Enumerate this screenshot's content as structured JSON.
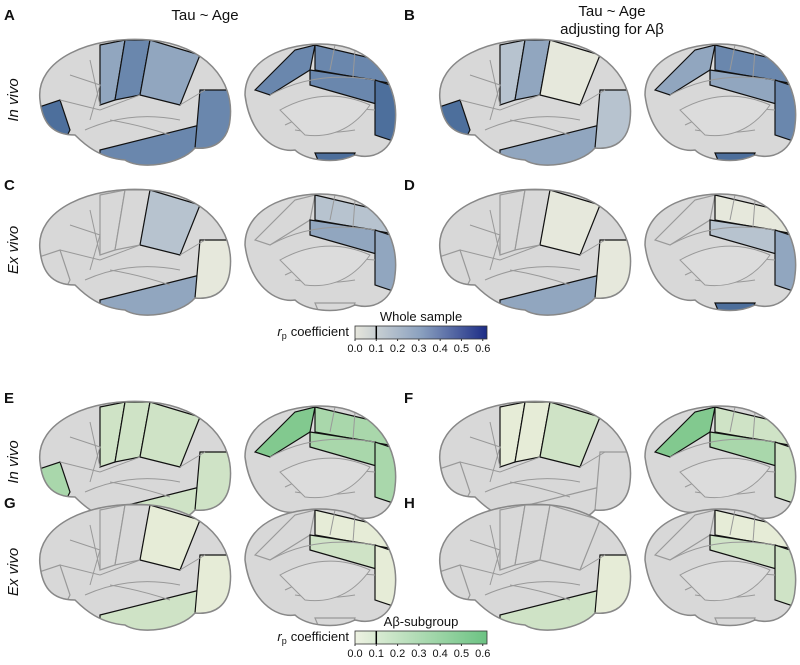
{
  "panels": [
    "A",
    "B",
    "C",
    "D",
    "E",
    "F",
    "G",
    "H"
  ],
  "column_titles": {
    "left": "Tau ~ Age",
    "right": [
      "Tau ~ Age",
      "adjusting for Aβ"
    ]
  },
  "row_labels": [
    "In vivo",
    "Ex vivo",
    "In vivo",
    "Ex vivo"
  ],
  "colorbars": [
    {
      "title": "Whole sample",
      "symbol": "r",
      "subscript": "p",
      "label": "coefficient",
      "lim": [
        0,
        0.62
      ],
      "threshold": 0.1,
      "ticks": [
        {
          "value": 0,
          "label": "0.0"
        },
        {
          "value": 0.1,
          "label": "0.1"
        },
        {
          "value": 0.2,
          "label": "0.2"
        },
        {
          "value": 0.3,
          "label": "0.3"
        },
        {
          "value": 0.4,
          "label": "0.4"
        },
        {
          "value": 0.5,
          "label": "0.5"
        },
        {
          "value": 0.6,
          "label": "0.6"
        }
      ]
    },
    {
      "title": "Aβ-subgroup",
      "symbol": "r",
      "subscript": "p",
      "label": "coefficient",
      "lim": [
        0,
        0.62
      ],
      "threshold": 0.1,
      "ticks": [
        {
          "value": 0,
          "label": "0.0"
        },
        {
          "value": 0.1,
          "label": "0.1"
        },
        {
          "value": 0.2,
          "label": "0.2"
        },
        {
          "value": 0.3,
          "label": "0.3"
        },
        {
          "value": 0.4,
          "label": "0.4"
        },
        {
          "value": 0.5,
          "label": "0.5"
        },
        {
          "value": 0.6,
          "label": "0.6"
        }
      ]
    }
  ]
}
